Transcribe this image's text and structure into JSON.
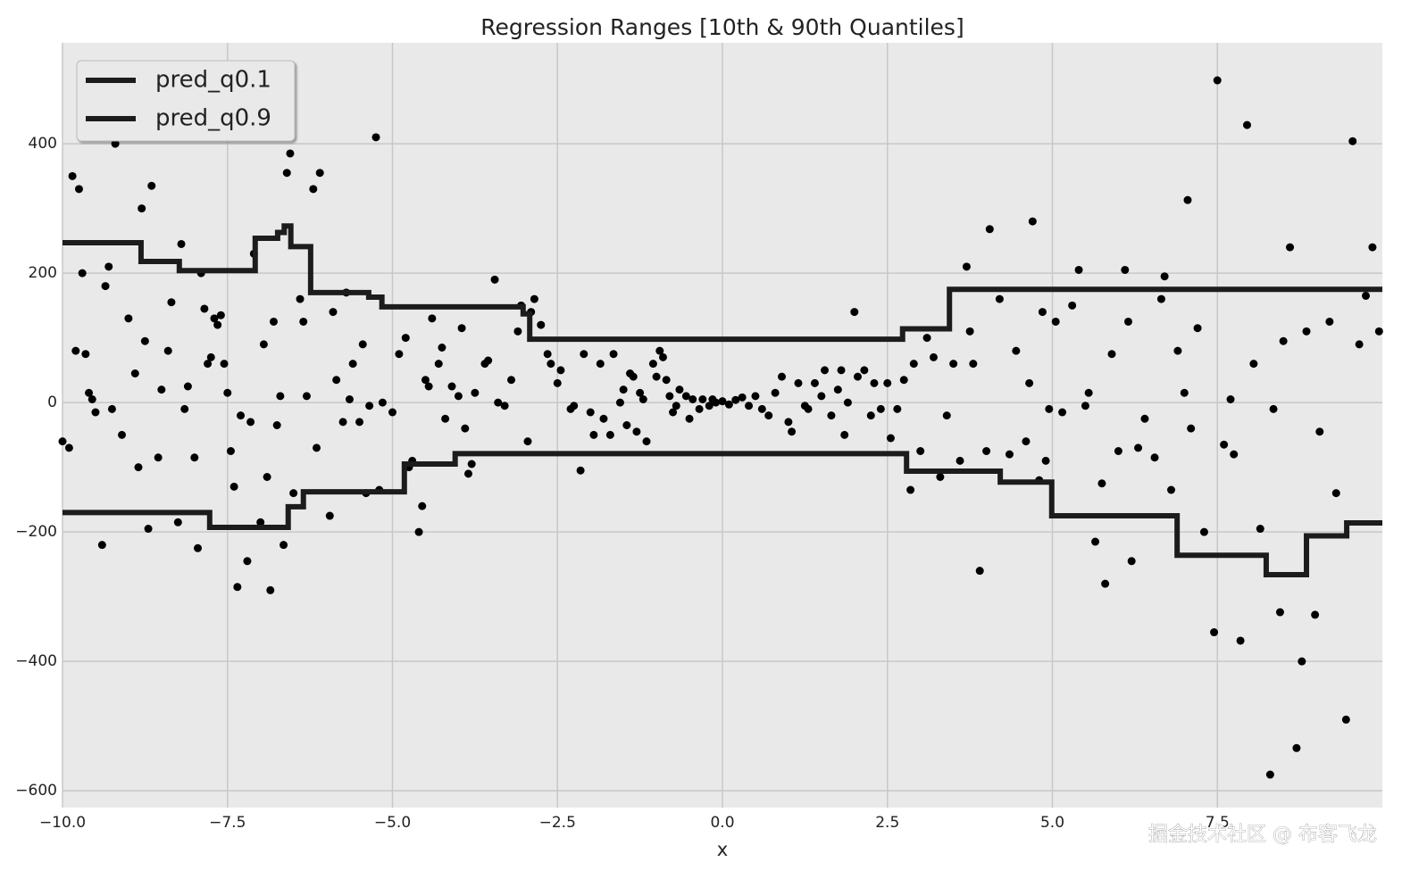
{
  "chart_data": {
    "type": "scatter",
    "title": "Regression Ranges [10th & 90th Quantiles]",
    "xlabel": "x",
    "watermark": "掘金技术社区 @ 布客飞龙",
    "color": "#000000",
    "grid": true,
    "legend": "upper left",
    "xlim": [
      -10,
      10
    ],
    "ylim": [
      -626,
      556
    ],
    "xticks": [
      {
        "value": -10,
        "label": "−10.0"
      },
      {
        "value": -7.5,
        "label": "−7.5"
      },
      {
        "value": -5,
        "label": "−5.0"
      },
      {
        "value": -2.5,
        "label": "−2.5"
      },
      {
        "value": 0,
        "label": "0.0"
      },
      2.5,
      {
        "value": 5,
        "label": "5.0"
      },
      7.5
    ],
    "yticks": [
      {
        "value": -600,
        "label": "−600"
      },
      {
        "value": -400,
        "label": "−400"
      },
      {
        "value": -200,
        "label": "−200"
      },
      0,
      200,
      400
    ],
    "x": [
      -10,
      -9.9,
      -9.85,
      -9.8,
      -9.75,
      -9.7,
      -9.65,
      -9.6,
      -9.55,
      -9.5,
      -9.4,
      -9.35,
      -9.3,
      -9.25,
      -9.2,
      -9.1,
      -9.0,
      -8.9,
      -8.85,
      -8.8,
      -8.75,
      -8.7,
      -8.65,
      -8.55,
      -8.5,
      -8.4,
      -8.35,
      -8.25,
      -8.2,
      -8.15,
      -8.1,
      -8.0,
      -7.95,
      -7.9,
      -7.85,
      -7.8,
      -7.75,
      -7.7,
      -7.65,
      -7.6,
      -7.55,
      -7.5,
      -7.45,
      -7.4,
      -7.35,
      -7.3,
      -7.2,
      -7.15,
      -7.1,
      -7.0,
      -6.95,
      -6.9,
      -6.85,
      -6.8,
      -6.75,
      -6.7,
      -6.65,
      -6.6,
      -6.55,
      -6.5,
      -6.4,
      -6.35,
      -6.3,
      -6.2,
      -6.15,
      -6.1,
      -5.95,
      -5.9,
      -5.85,
      -5.75,
      -5.7,
      -5.65,
      -5.6,
      -5.5,
      -5.45,
      -5.4,
      -5.35,
      -5.25,
      -5.2,
      -5.15,
      -5,
      -4.9,
      -4.8,
      -4.75,
      -4.7,
      -4.6,
      -4.55,
      -4.5,
      -4.45,
      -4.4,
      -4.3,
      -4.25,
      -4.2,
      -4.1,
      -4.0,
      -3.95,
      -3.9,
      -3.85,
      -3.8,
      -3.75,
      -3.6,
      -3.55,
      -3.45,
      -3.4,
      -3.3,
      -3.2,
      -3.1,
      -3.05,
      -2.95,
      -2.9,
      -2.85,
      -2.75,
      -2.65,
      -2.6,
      -2.5,
      -2.45,
      -2.3,
      -2.25,
      -2.15,
      -2.1,
      -2.0,
      -1.95,
      -1.85,
      -1.8,
      -1.7,
      -1.65,
      -1.55,
      -1.5,
      -1.45,
      -1.4,
      -1.35,
      -1.3,
      -1.25,
      -1.2,
      -1.15,
      -1.05,
      -1.0,
      -0.95,
      -0.9,
      -0.85,
      -0.8,
      -0.75,
      -0.7,
      -0.65,
      -0.55,
      -0.5,
      -0.45,
      -0.35,
      -0.3,
      -0.2,
      -0.15,
      -0.1,
      0,
      0.1,
      0.2,
      0.3,
      0.4,
      0.5,
      0.6,
      0.7,
      0.8,
      0.9,
      1.0,
      1.05,
      1.15,
      1.25,
      1.3,
      1.4,
      1.5,
      1.55,
      1.65,
      1.75,
      1.8,
      1.85,
      1.9,
      2.0,
      2.05,
      2.15,
      2.25,
      2.3,
      2.4,
      2.5,
      2.55,
      2.65,
      2.75,
      2.85,
      2.9,
      3.0,
      3.1,
      3.2,
      3.3,
      3.4,
      3.5,
      3.6,
      3.7,
      3.75,
      3.8,
      3.9,
      4.0,
      4.05,
      4.2,
      4.35,
      4.45,
      4.6,
      4.65,
      4.7,
      4.8,
      4.85,
      4.9,
      4.95,
      5.05,
      5.15,
      5.3,
      5.4,
      5.5,
      5.55,
      5.65,
      5.75,
      5.8,
      5.9,
      6.0,
      6.1,
      6.15,
      6.2,
      6.3,
      6.4,
      6.55,
      6.65,
      6.7,
      6.8,
      6.9,
      7.0,
      7.05,
      7.1,
      7.2,
      7.3,
      7.45,
      7.5,
      7.6,
      7.7,
      7.75,
      7.85,
      7.95,
      8.05,
      8.15,
      8.3,
      8.35,
      8.45,
      8.5,
      8.6,
      8.7,
      8.78,
      8.85,
      8.98,
      9.05,
      9.2,
      9.3,
      9.45,
      9.55,
      9.65,
      9.75,
      9.85,
      9.95
    ],
    "values": [
      -60,
      -70,
      350,
      80,
      330,
      200,
      75,
      15,
      5,
      -15,
      -220,
      180,
      210,
      -10,
      400,
      -50,
      130,
      45,
      -100,
      300,
      95,
      -195,
      335,
      -85,
      20,
      80,
      155,
      -185,
      245,
      -10,
      25,
      -85,
      -225,
      200,
      145,
      60,
      70,
      130,
      120,
      135,
      60,
      15,
      -75,
      -130,
      -285,
      -20,
      -245,
      -30,
      230,
      -185,
      90,
      -115,
      -290,
      125,
      -35,
      10,
      -220,
      355,
      385,
      -140,
      160,
      125,
      10,
      330,
      -70,
      355,
      -175,
      140,
      35,
      -30,
      170,
      5,
      60,
      -30,
      90,
      -140,
      -5,
      410,
      -135,
      0,
      -15,
      75,
      100,
      -100,
      -90,
      -200,
      -160,
      35,
      25,
      130,
      60,
      85,
      -25,
      25,
      10,
      115,
      -40,
      -110,
      -95,
      15,
      60,
      65,
      190,
      0,
      -5,
      35,
      110,
      150,
      -60,
      140,
      160,
      120,
      75,
      60,
      30,
      50,
      -10,
      -5,
      -105,
      75,
      -15,
      -50,
      60,
      -25,
      -50,
      75,
      0,
      20,
      -35,
      45,
      40,
      -45,
      15,
      5,
      -60,
      60,
      40,
      80,
      70,
      35,
      10,
      -15,
      -5,
      20,
      10,
      -25,
      5,
      -10,
      5,
      -5,
      5,
      0,
      2,
      -3,
      4,
      8,
      -5,
      10,
      -10,
      -20,
      15,
      40,
      -30,
      -45,
      30,
      -5,
      -10,
      30,
      10,
      50,
      -20,
      20,
      50,
      -50,
      0,
      140,
      40,
      50,
      -20,
      30,
      -10,
      30,
      -55,
      -10,
      35,
      -135,
      60,
      -75,
      100,
      70,
      -115,
      -20,
      60,
      -90,
      210,
      110,
      60,
      -260,
      -75,
      268,
      160,
      -80,
      80,
      -60,
      30,
      280,
      -120,
      140,
      -90,
      -10,
      125,
      -15,
      150,
      205,
      -5,
      15,
      -215,
      -125,
      -280,
      75,
      -75,
      205,
      125,
      -245,
      -70,
      -25,
      -85,
      160,
      195,
      -135,
      80,
      15,
      313,
      -40,
      115,
      -200,
      -355,
      498,
      -65,
      5,
      -80,
      -368,
      429,
      60,
      -195,
      -575,
      -10,
      -324,
      95,
      240,
      -534,
      -400,
      110,
      -328,
      -45,
      125,
      -140,
      -490,
      404,
      90,
      165,
      240,
      110
    ],
    "series": [
      {
        "name": "pred_q0.1",
        "color": "#1c1c1c",
        "x": [
          -10,
          -7.77,
          -7.77,
          -6.58,
          -6.58,
          -6.35,
          -6.35,
          -4.82,
          -4.82,
          -4.05,
          -4.05,
          2.79,
          2.79,
          4.21,
          4.21,
          4.99,
          4.99,
          6.89,
          6.89,
          8.24,
          8.24,
          8.85,
          8.85,
          9.46,
          9.46,
          10
        ],
        "values": [
          -170,
          -170,
          -193,
          -193,
          -161,
          -161,
          -138,
          -138,
          -95,
          -95,
          -79,
          -79,
          -106,
          -106,
          -123,
          -123,
          -175,
          -175,
          -236,
          -236,
          -266,
          -266,
          -206,
          -206,
          -186,
          -186
        ]
      },
      {
        "name": "pred_q0.9",
        "color": "#1c1c1c",
        "x": [
          -10,
          -8.81,
          -8.81,
          -8.23,
          -8.23,
          -7.08,
          -7.08,
          -6.74,
          -6.74,
          -6.64,
          -6.64,
          -6.54,
          -6.54,
          -6.24,
          -6.24,
          -5.36,
          -5.36,
          -5.16,
          -5.16,
          -3.02,
          -3.02,
          -2.92,
          -2.92,
          2.73,
          2.73,
          3.44,
          3.44,
          10
        ],
        "values": [
          247,
          247,
          218,
          218,
          204,
          204,
          254,
          254,
          263,
          263,
          273,
          273,
          241,
          241,
          170,
          170,
          163,
          163,
          148,
          148,
          137,
          137,
          98,
          98,
          114,
          114,
          175,
          175
        ]
      }
    ]
  }
}
